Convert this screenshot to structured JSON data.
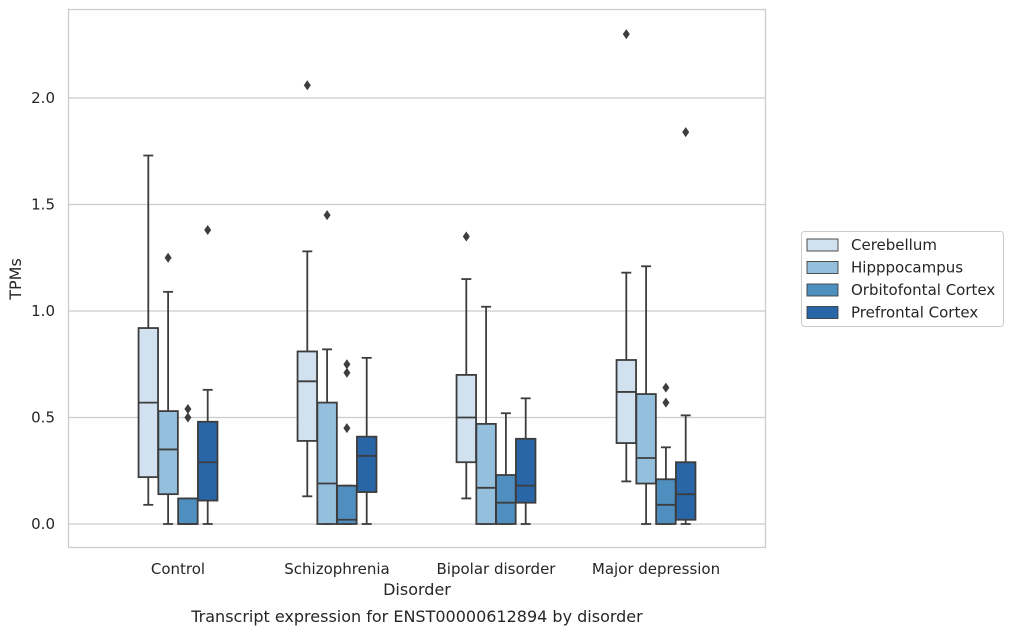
{
  "chart_data": {
    "type": "box",
    "xlabel": "Disorder",
    "ylabel": "TPMs",
    "caption": "Transcript expression for ENST00000612894 by disorder",
    "ylim": [
      -0.11,
      2.41
    ],
    "yticks": [
      "0.0",
      "0.5",
      "1.0",
      "1.5",
      "2.0"
    ],
    "grid": "horizontal",
    "legend_position": "right",
    "categories": [
      "Control",
      "Schizophrenia",
      "Bipolar disorder",
      "Major depression"
    ],
    "series": [
      {
        "name": "Cerebellum",
        "color": "#d1e1f0",
        "boxes": [
          {
            "whisker_low": 0.09,
            "q1": 0.22,
            "median": 0.57,
            "q3": 0.92,
            "whisker_high": 1.73,
            "outliers": []
          },
          {
            "whisker_low": 0.13,
            "q1": 0.39,
            "median": 0.67,
            "q3": 0.81,
            "whisker_high": 1.28,
            "outliers": [
              2.06
            ]
          },
          {
            "whisker_low": 0.12,
            "q1": 0.29,
            "median": 0.5,
            "q3": 0.7,
            "whisker_high": 1.15,
            "outliers": [
              1.35
            ]
          },
          {
            "whisker_low": 0.2,
            "q1": 0.38,
            "median": 0.62,
            "q3": 0.77,
            "whisker_high": 1.18,
            "outliers": [
              2.3
            ]
          }
        ]
      },
      {
        "name": "Hipppocampus",
        "color": "#94c0dd",
        "boxes": [
          {
            "whisker_low": 0.0,
            "q1": 0.14,
            "median": 0.35,
            "q3": 0.53,
            "whisker_high": 1.09,
            "outliers": [
              1.25
            ]
          },
          {
            "whisker_low": 0.0,
            "q1": 0.0,
            "median": 0.19,
            "q3": 0.57,
            "whisker_high": 0.82,
            "outliers": [
              1.45
            ]
          },
          {
            "whisker_low": 0.0,
            "q1": 0.0,
            "median": 0.17,
            "q3": 0.47,
            "whisker_high": 1.02,
            "outliers": []
          },
          {
            "whisker_low": 0.0,
            "q1": 0.19,
            "median": 0.31,
            "q3": 0.61,
            "whisker_high": 1.21,
            "outliers": []
          }
        ]
      },
      {
        "name": "Orbitofontal Cortex",
        "color": "#4f8fc0",
        "boxes": [
          {
            "whisker_low": 0.0,
            "q1": 0.0,
            "median": 0.0,
            "q3": 0.12,
            "whisker_high": 0.12,
            "outliers": [
              0.5,
              0.54
            ]
          },
          {
            "whisker_low": 0.0,
            "q1": 0.0,
            "median": 0.02,
            "q3": 0.18,
            "whisker_high": 0.18,
            "outliers": [
              0.45,
              0.71,
              0.75
            ]
          },
          {
            "whisker_low": 0.0,
            "q1": 0.0,
            "median": 0.1,
            "q3": 0.23,
            "whisker_high": 0.52,
            "outliers": []
          },
          {
            "whisker_low": 0.0,
            "q1": 0.0,
            "median": 0.09,
            "q3": 0.21,
            "whisker_high": 0.36,
            "outliers": [
              0.57,
              0.64
            ]
          }
        ]
      },
      {
        "name": "Prefrontal Cortex",
        "color": "#2866a8",
        "boxes": [
          {
            "whisker_low": 0.0,
            "q1": 0.11,
            "median": 0.29,
            "q3": 0.48,
            "whisker_high": 0.63,
            "outliers": [
              1.38
            ]
          },
          {
            "whisker_low": 0.0,
            "q1": 0.15,
            "median": 0.32,
            "q3": 0.41,
            "whisker_high": 0.78,
            "outliers": []
          },
          {
            "whisker_low": 0.0,
            "q1": 0.1,
            "median": 0.18,
            "q3": 0.4,
            "whisker_high": 0.59,
            "outliers": []
          },
          {
            "whisker_low": 0.0,
            "q1": 0.02,
            "median": 0.14,
            "q3": 0.29,
            "whisker_high": 0.51,
            "outliers": [
              1.84
            ]
          }
        ]
      }
    ]
  }
}
